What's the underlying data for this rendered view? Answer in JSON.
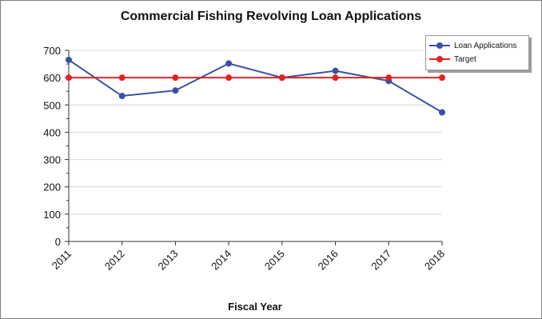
{
  "chart_data": {
    "type": "line",
    "title": "Commercial Fishing Revolving Loan Applications",
    "xlabel": "Fiscal Year",
    "ylabel": "",
    "categories": [
      "2011",
      "2012",
      "2013",
      "2014",
      "2015",
      "2016",
      "2017",
      "2018"
    ],
    "ylim": [
      0,
      700
    ],
    "yticks": [
      0,
      100,
      200,
      300,
      400,
      500,
      600,
      700
    ],
    "grid": true,
    "legend_position": "top-right",
    "series": [
      {
        "name": "Loan Applications",
        "color": "#3a52a2",
        "values": [
          665,
          533,
          553,
          652,
          600,
          625,
          588,
          473
        ]
      },
      {
        "name": "Target",
        "color": "#e02424",
        "values": [
          600,
          600,
          600,
          600,
          600,
          600,
          600,
          600
        ]
      }
    ]
  }
}
